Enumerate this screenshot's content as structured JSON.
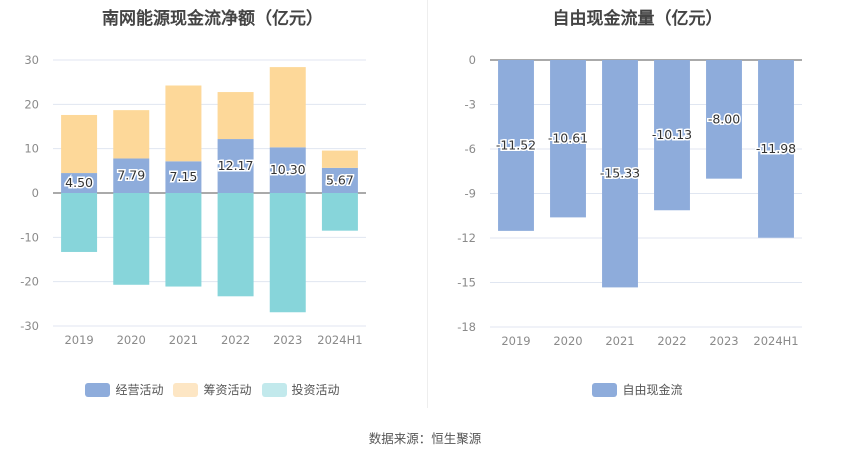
{
  "chart_data": [
    {
      "type": "bar",
      "stacked": true,
      "title": "南网能源现金流净额（亿元）",
      "categories": [
        "2019",
        "2020",
        "2021",
        "2022",
        "2023",
        "2024H1"
      ],
      "ylim": [
        -30,
        30
      ],
      "yticks": [
        30,
        20,
        10,
        0,
        -10,
        -20,
        -30
      ],
      "grid": true,
      "legend_position": "bottom",
      "series": [
        {
          "name": "经营活动",
          "color": "#8eacdb",
          "values": [
            4.5,
            7.79,
            7.15,
            12.17,
            10.3,
            5.67
          ],
          "show_labels": true
        },
        {
          "name": "筹资活动",
          "color": "#fdd899",
          "legend_color": "#fde6c4",
          "values": [
            13.1,
            10.9,
            17.1,
            10.6,
            18.1,
            3.9
          ],
          "show_labels": false
        },
        {
          "name": "投资活动",
          "color": "#87d5da",
          "legend_color": "#c2e9ec",
          "values": [
            -13.3,
            -20.7,
            -21.1,
            -23.3,
            -26.9,
            -8.5
          ],
          "show_labels": false
        }
      ]
    },
    {
      "type": "bar",
      "title": "自由现金流量（亿元）",
      "categories": [
        "2019",
        "2020",
        "2021",
        "2022",
        "2023",
        "2024H1"
      ],
      "ylim": [
        -18,
        0
      ],
      "yticks": [
        0,
        -3,
        -6,
        -9,
        -12,
        -15,
        -18
      ],
      "grid": true,
      "legend_position": "bottom",
      "series": [
        {
          "name": "自由现金流",
          "color": "#8eacdb",
          "values": [
            -11.52,
            -10.61,
            -15.33,
            -10.13,
            -8.0,
            -11.98
          ],
          "show_labels": true
        }
      ]
    }
  ],
  "footer": {
    "source": "数据来源：恒生聚源"
  }
}
